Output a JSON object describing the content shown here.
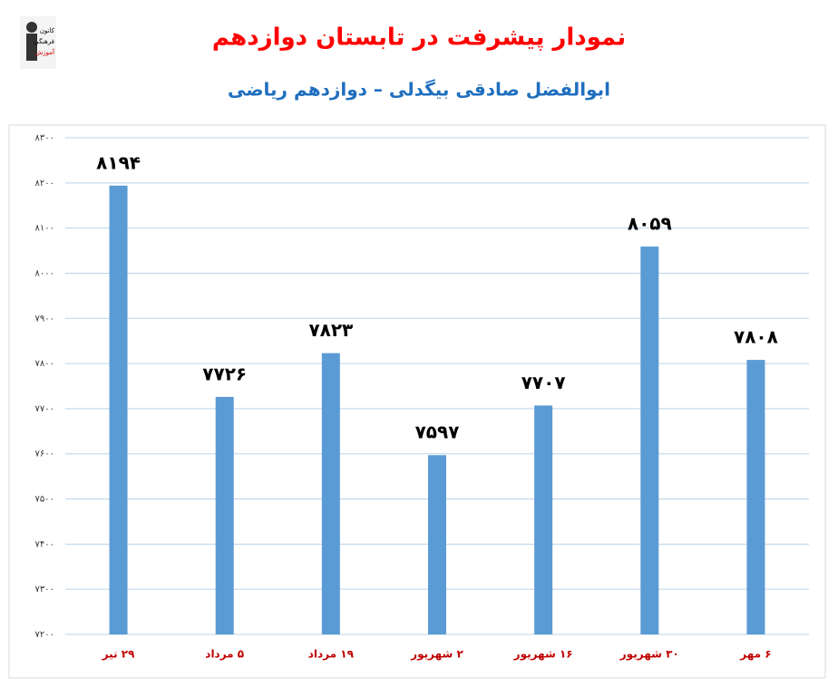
{
  "logo": [
    "کانون",
    "فرهنگی",
    "آموزش"
  ],
  "chart_data": {
    "type": "bar",
    "title": "نمودار پیشرفت در تابستان دوازدهم",
    "subtitle": "ابوالفضل صادقی بیگدلی – دوازدهم ریاضی",
    "categories": [
      "۲۹ تیر",
      "۵ مرداد",
      "۱۹ مرداد",
      "۲ شهریور",
      "۱۶ شهریور",
      "۳۰ شهریور",
      "۶ مهر"
    ],
    "values": [
      8194,
      7726,
      7823,
      7597,
      7707,
      8059,
      7808
    ],
    "value_labels": [
      "۸۱۹۴",
      "۷۷۲۶",
      "۷۸۲۳",
      "۷۵۹۷",
      "۷۷۰۷",
      "۸۰۵۹",
      "۷۸۰۸"
    ],
    "color": "#5b9bd5",
    "ylim": [
      7200,
      8300
    ],
    "yticks": [
      {
        "value": 7200,
        "label": "۷۲۰۰"
      },
      {
        "value": 7300,
        "label": "۷۳۰۰"
      },
      {
        "value": 7400,
        "label": "۷۴۰۰"
      },
      {
        "value": 7500,
        "label": "۷۵۰۰"
      },
      {
        "value": 7600,
        "label": "۷۶۰۰"
      },
      {
        "value": 7700,
        "label": "۷۷۰۰"
      },
      {
        "value": 7800,
        "label": "۷۸۰۰"
      },
      {
        "value": 7900,
        "label": "۷۹۰۰"
      },
      {
        "value": 8000,
        "label": "۸۰۰۰"
      },
      {
        "value": 8100,
        "label": "۸۱۰۰"
      },
      {
        "value": 8200,
        "label": "۸۲۰۰"
      },
      {
        "value": 8300,
        "label": "۸۳۰۰"
      }
    ],
    "grid": true
  }
}
